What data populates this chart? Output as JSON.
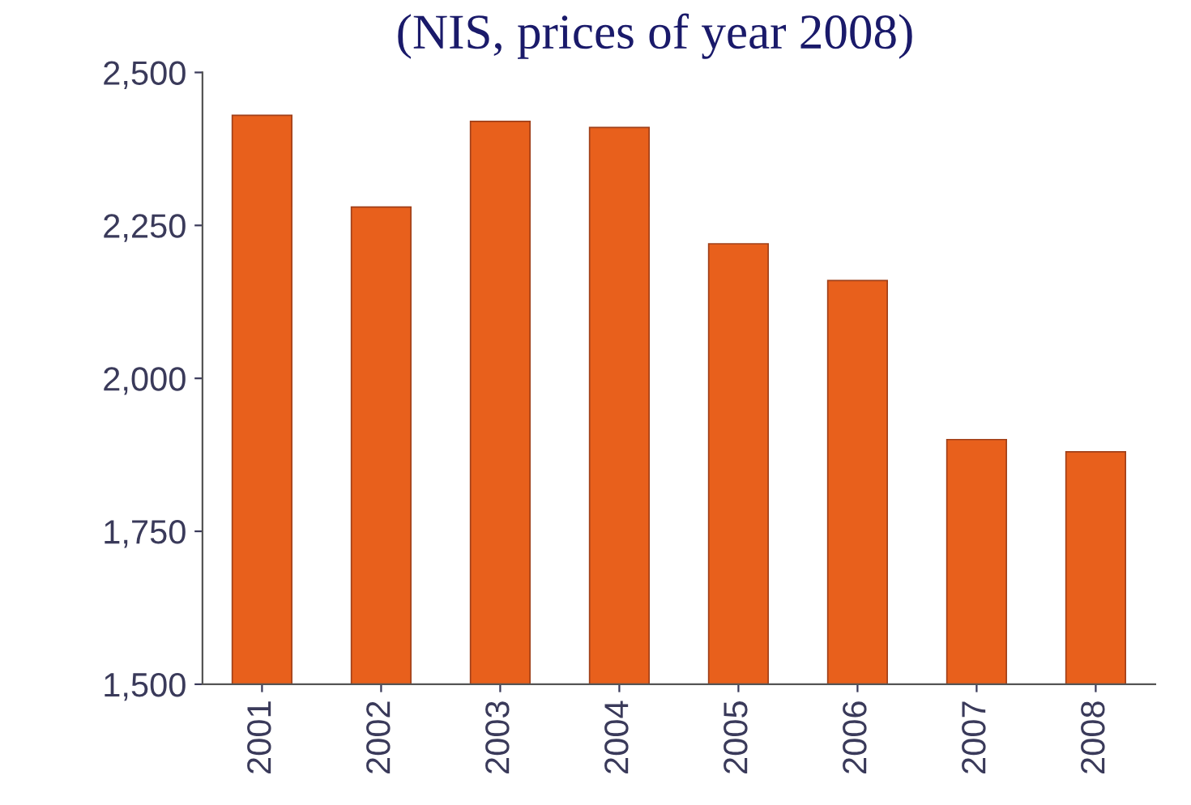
{
  "chart_data": {
    "type": "bar",
    "title": "(NIS, prices of year 2008)",
    "categories": [
      "2001",
      "2002",
      "2003",
      "2004",
      "2005",
      "2006",
      "2007",
      "2008"
    ],
    "values": [
      2430,
      2280,
      2420,
      2410,
      2220,
      2160,
      1900,
      1880
    ],
    "color": "#e8601c",
    "ylim": [
      1500,
      2500
    ],
    "yticks": [
      {
        "value": 1500,
        "label": "1,500"
      },
      {
        "value": 1750,
        "label": "1,750"
      },
      {
        "value": 2000,
        "label": "2,000"
      },
      {
        "value": 2250,
        "label": "2,250"
      },
      {
        "value": 2500,
        "label": "2,500"
      }
    ],
    "grid": false
  }
}
